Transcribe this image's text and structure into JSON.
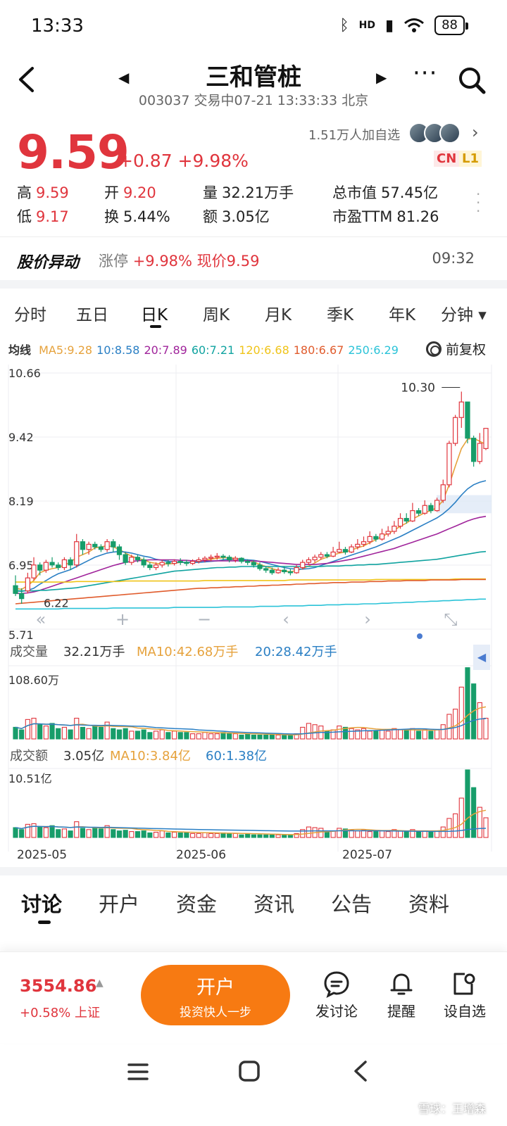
{
  "status": {
    "time": "13:33",
    "network": "HD",
    "battery": "88"
  },
  "header": {
    "name": "三和管桩",
    "subtitle": "003037 交易中07-21 13:33:33 北京"
  },
  "quote": {
    "price": "9.59",
    "change": "+0.87 +9.98%",
    "followers": "1.51万人加自选",
    "tag_cn": "CN",
    "tag_l1": "L1",
    "stats": [
      {
        "label": "高",
        "value": "9.59",
        "color": "red"
      },
      {
        "label": "开",
        "value": "9.20",
        "color": "red"
      },
      {
        "label": "量",
        "value": "32.21万手",
        "color": "plain"
      },
      {
        "label": "总市值",
        "value": "57.45亿",
        "color": "plain"
      },
      {
        "label": "低",
        "value": "9.17",
        "color": "red"
      },
      {
        "label": "换",
        "value": "5.44%",
        "color": "plain"
      },
      {
        "label": "额",
        "value": "3.05亿",
        "color": "plain"
      },
      {
        "label": "市盈TTM",
        "value": "81.26",
        "color": "plain"
      }
    ]
  },
  "alert": {
    "title": "股价异动",
    "label": "涨停",
    "text": "+9.98% 现价9.59",
    "time": "09:32"
  },
  "periods": [
    "分时",
    "五日",
    "日K",
    "周K",
    "月K",
    "季K",
    "年K",
    "分钟 ▾"
  ],
  "ma_legend": {
    "label": "均线",
    "items": [
      {
        "text": "MA5:9.28",
        "color": "#e6a23c"
      },
      {
        "text": "10:8.58",
        "color": "#2a7fc4"
      },
      {
        "text": "20:7.89",
        "color": "#a0249b"
      },
      {
        "text": "60:7.21",
        "color": "#10a3a0"
      },
      {
        "text": "120:6.68",
        "color": "#f0c419"
      },
      {
        "text": "180:6.67",
        "color": "#e05b2c"
      },
      {
        "text": "250:6.29",
        "color": "#2bc3d8"
      }
    ],
    "adjust": "前复权"
  },
  "chart_data": {
    "type": "candlestick",
    "y_labels": [
      "10.66",
      "9.42",
      "8.19",
      "6.95",
      "5.71"
    ],
    "ylim": [
      5.71,
      10.66
    ],
    "high_marker": "10.30",
    "low_marker": "6.22",
    "x_labels": [
      "2025-05",
      "2025-06",
      "2025-07"
    ],
    "candles": [
      [
        6.55,
        6.4,
        6.75,
        6.35
      ],
      [
        6.4,
        6.3,
        6.5,
        6.2
      ],
      [
        6.45,
        6.7,
        6.8,
        6.4
      ],
      [
        6.7,
        6.95,
        7.1,
        6.65
      ],
      [
        6.95,
        6.85,
        7.0,
        6.75
      ],
      [
        6.85,
        7.0,
        7.05,
        6.8
      ],
      [
        7.0,
        6.95,
        7.1,
        6.9
      ],
      [
        6.95,
        6.9,
        7.0,
        6.85
      ],
      [
        6.9,
        7.05,
        7.1,
        6.85
      ],
      [
        7.05,
        6.95,
        7.1,
        6.85
      ],
      [
        6.95,
        7.4,
        7.55,
        6.9
      ],
      [
        7.4,
        7.25,
        7.45,
        7.15
      ],
      [
        7.25,
        7.35,
        7.4,
        7.15
      ],
      [
        7.35,
        7.3,
        7.4,
        7.25
      ],
      [
        7.3,
        7.25,
        7.35,
        7.2
      ],
      [
        7.25,
        7.4,
        7.45,
        7.2
      ],
      [
        7.4,
        7.3,
        7.45,
        7.2
      ],
      [
        7.3,
        7.15,
        7.35,
        7.05
      ],
      [
        7.15,
        7.0,
        7.2,
        6.95
      ],
      [
        7.0,
        7.1,
        7.15,
        6.95
      ],
      [
        7.1,
        7.05,
        7.15,
        7.0
      ],
      [
        7.05,
        6.95,
        7.1,
        6.9
      ],
      [
        6.95,
        6.9,
        7.0,
        6.85
      ],
      [
        6.9,
        6.95,
        7.0,
        6.85
      ],
      [
        6.95,
        7.0,
        7.05,
        6.9
      ],
      [
        7.0,
        6.98,
        7.05,
        6.92
      ],
      [
        6.98,
        7.02,
        7.06,
        6.94
      ],
      [
        7.02,
        7.0,
        7.08,
        6.95
      ],
      [
        7.0,
        6.98,
        7.05,
        6.93
      ],
      [
        6.98,
        7.02,
        7.06,
        6.95
      ],
      [
        7.02,
        7.05,
        7.1,
        6.98
      ],
      [
        7.05,
        7.08,
        7.12,
        7.0
      ],
      [
        7.08,
        7.1,
        7.15,
        7.02
      ],
      [
        7.1,
        7.12,
        7.18,
        7.05
      ],
      [
        7.12,
        7.1,
        7.16,
        7.04
      ],
      [
        7.1,
        7.05,
        7.14,
        7.0
      ],
      [
        7.05,
        7.08,
        7.12,
        7.0
      ],
      [
        7.08,
        7.02,
        7.1,
        6.98
      ],
      [
        7.02,
        7.0,
        7.06,
        6.95
      ],
      [
        7.0,
        6.95,
        7.04,
        6.9
      ],
      [
        6.95,
        6.88,
        7.0,
        6.84
      ],
      [
        6.88,
        6.85,
        6.92,
        6.8
      ],
      [
        6.85,
        6.8,
        6.9,
        6.76
      ],
      [
        6.8,
        6.85,
        6.9,
        6.78
      ],
      [
        6.85,
        6.82,
        6.92,
        6.78
      ],
      [
        6.82,
        6.8,
        6.88,
        6.75
      ],
      [
        6.8,
        6.9,
        6.95,
        6.78
      ],
      [
        6.9,
        7.0,
        7.05,
        6.86
      ],
      [
        7.0,
        7.05,
        7.1,
        6.95
      ],
      [
        7.05,
        7.1,
        7.15,
        7.0
      ],
      [
        7.1,
        7.15,
        7.2,
        7.05
      ],
      [
        7.15,
        7.12,
        7.2,
        7.08
      ],
      [
        7.12,
        7.2,
        7.3,
        7.1
      ],
      [
        7.2,
        7.25,
        7.4,
        7.18
      ],
      [
        7.25,
        7.2,
        7.3,
        7.15
      ],
      [
        7.2,
        7.3,
        7.35,
        7.18
      ],
      [
        7.3,
        7.35,
        7.45,
        7.25
      ],
      [
        7.35,
        7.4,
        7.5,
        7.3
      ],
      [
        7.4,
        7.5,
        7.6,
        7.35
      ],
      [
        7.5,
        7.45,
        7.55,
        7.4
      ],
      [
        7.45,
        7.55,
        7.65,
        7.42
      ],
      [
        7.55,
        7.6,
        7.7,
        7.5
      ],
      [
        7.6,
        7.7,
        7.8,
        7.55
      ],
      [
        7.7,
        7.85,
        7.95,
        7.65
      ],
      [
        7.85,
        7.8,
        7.95,
        7.75
      ],
      [
        7.8,
        8.0,
        8.15,
        7.78
      ],
      [
        8.0,
        7.95,
        8.05,
        7.9
      ],
      [
        7.95,
        8.1,
        8.2,
        7.92
      ],
      [
        8.1,
        8.0,
        8.15,
        7.95
      ],
      [
        8.0,
        8.2,
        8.25,
        7.98
      ],
      [
        8.2,
        8.5,
        8.6,
        8.15
      ],
      [
        8.5,
        9.3,
        9.35,
        8.45
      ],
      [
        9.3,
        9.8,
        9.85,
        9.25
      ],
      [
        9.8,
        10.1,
        10.3,
        9.6
      ],
      [
        10.1,
        9.4,
        10.1,
        9.3
      ],
      [
        9.4,
        8.95,
        9.45,
        8.85
      ],
      [
        8.95,
        9.3,
        9.5,
        8.9
      ],
      [
        9.2,
        9.59,
        9.59,
        9.17
      ]
    ],
    "ma_lines": [
      {
        "name": "MA5",
        "color": "#e6a23c",
        "values": [
          6.5,
          6.48,
          6.55,
          6.65,
          6.8,
          6.85,
          6.88,
          6.9,
          6.95,
          7.0,
          7.1,
          7.15,
          7.2,
          7.28,
          7.3,
          7.32,
          7.3,
          7.25,
          7.18,
          7.12,
          7.08,
          7.05,
          7.0,
          6.98,
          6.97,
          6.97,
          6.98,
          7.0,
          7.0,
          7.0,
          7.02,
          7.04,
          7.06,
          7.08,
          7.09,
          7.09,
          7.08,
          7.06,
          7.04,
          7.01,
          6.96,
          6.92,
          6.88,
          6.85,
          6.83,
          6.82,
          6.84,
          6.88,
          6.93,
          6.99,
          7.06,
          7.1,
          7.14,
          7.18,
          7.2,
          7.24,
          7.28,
          7.32,
          7.38,
          7.44,
          7.5,
          7.56,
          7.62,
          7.7,
          7.76,
          7.84,
          7.9,
          7.96,
          8.0,
          8.06,
          8.2,
          8.5,
          8.86,
          9.2,
          9.38,
          9.4,
          9.34,
          9.28
        ]
      },
      {
        "name": "10",
        "color": "#2a7fc4",
        "values": [
          6.45,
          6.44,
          6.46,
          6.5,
          6.58,
          6.65,
          6.72,
          6.78,
          6.82,
          6.86,
          6.92,
          6.98,
          7.04,
          7.1,
          7.14,
          7.18,
          7.2,
          7.21,
          7.2,
          7.18,
          7.15,
          7.12,
          7.1,
          7.06,
          7.04,
          7.02,
          7.01,
          7.0,
          7.0,
          7.0,
          7.0,
          7.01,
          7.02,
          7.03,
          7.05,
          7.06,
          7.06,
          7.06,
          7.05,
          7.04,
          7.02,
          6.99,
          6.96,
          6.93,
          6.9,
          6.88,
          6.87,
          6.87,
          6.88,
          6.9,
          6.94,
          6.98,
          7.02,
          7.06,
          7.1,
          7.14,
          7.18,
          7.22,
          7.26,
          7.3,
          7.35,
          7.4,
          7.45,
          7.5,
          7.56,
          7.62,
          7.68,
          7.74,
          7.8,
          7.86,
          7.94,
          8.04,
          8.16,
          8.3,
          8.42,
          8.5,
          8.55,
          8.58
        ]
      },
      {
        "name": "20",
        "color": "#a0249b",
        "values": [
          6.4,
          6.4,
          6.41,
          6.43,
          6.46,
          6.5,
          6.54,
          6.58,
          6.62,
          6.66,
          6.7,
          6.74,
          6.78,
          6.82,
          6.86,
          6.9,
          6.94,
          6.97,
          7.0,
          7.02,
          7.03,
          7.04,
          7.05,
          7.05,
          7.05,
          7.05,
          7.05,
          7.04,
          7.04,
          7.03,
          7.03,
          7.03,
          7.03,
          7.03,
          7.03,
          7.03,
          7.03,
          7.03,
          7.03,
          7.03,
          7.02,
          7.01,
          7.0,
          6.99,
          6.98,
          6.97,
          6.96,
          6.96,
          6.96,
          6.96,
          6.97,
          6.98,
          7.0,
          7.02,
          7.04,
          7.06,
          7.09,
          7.12,
          7.15,
          7.18,
          7.21,
          7.24,
          7.27,
          7.31,
          7.35,
          7.39,
          7.43,
          7.47,
          7.51,
          7.55,
          7.6,
          7.65,
          7.7,
          7.75,
          7.8,
          7.84,
          7.87,
          7.89
        ]
      },
      {
        "name": "60",
        "color": "#10a3a0",
        "values": [
          6.45,
          6.45,
          6.45,
          6.45,
          6.46,
          6.46,
          6.47,
          6.48,
          6.49,
          6.5,
          6.51,
          6.53,
          6.55,
          6.57,
          6.59,
          6.61,
          6.63,
          6.65,
          6.67,
          6.69,
          6.71,
          6.73,
          6.75,
          6.77,
          6.79,
          6.81,
          6.83,
          6.84,
          6.85,
          6.86,
          6.87,
          6.88,
          6.89,
          6.9,
          6.9,
          6.91,
          6.91,
          6.92,
          6.92,
          6.92,
          6.92,
          6.92,
          6.92,
          6.92,
          6.92,
          6.92,
          6.92,
          6.92,
          6.92,
          6.92,
          6.92,
          6.93,
          6.93,
          6.93,
          6.94,
          6.94,
          6.95,
          6.95,
          6.96,
          6.96,
          6.97,
          6.98,
          6.99,
          7.0,
          7.01,
          7.02,
          7.03,
          7.04,
          7.05,
          7.06,
          7.08,
          7.1,
          7.12,
          7.14,
          7.16,
          7.18,
          7.2,
          7.21
        ]
      },
      {
        "name": "120",
        "color": "#f0c419",
        "values": [
          6.62,
          6.62,
          6.62,
          6.62,
          6.62,
          6.62,
          6.62,
          6.62,
          6.62,
          6.62,
          6.63,
          6.63,
          6.63,
          6.63,
          6.63,
          6.63,
          6.63,
          6.63,
          6.64,
          6.64,
          6.64,
          6.64,
          6.64,
          6.64,
          6.64,
          6.64,
          6.64,
          6.64,
          6.64,
          6.64,
          6.64,
          6.65,
          6.65,
          6.65,
          6.65,
          6.65,
          6.65,
          6.65,
          6.65,
          6.65,
          6.65,
          6.65,
          6.65,
          6.65,
          6.65,
          6.66,
          6.66,
          6.66,
          6.66,
          6.66,
          6.66,
          6.66,
          6.66,
          6.66,
          6.66,
          6.66,
          6.66,
          6.66,
          6.66,
          6.67,
          6.67,
          6.67,
          6.67,
          6.67,
          6.67,
          6.67,
          6.67,
          6.67,
          6.67,
          6.67,
          6.67,
          6.67,
          6.68,
          6.68,
          6.68,
          6.68,
          6.68,
          6.68
        ]
      },
      {
        "name": "180",
        "color": "#e05b2c",
        "values": [
          6.2,
          6.21,
          6.22,
          6.23,
          6.24,
          6.25,
          6.26,
          6.27,
          6.28,
          6.29,
          6.3,
          6.31,
          6.32,
          6.33,
          6.34,
          6.35,
          6.36,
          6.37,
          6.38,
          6.39,
          6.4,
          6.41,
          6.42,
          6.43,
          6.44,
          6.45,
          6.46,
          6.47,
          6.48,
          6.49,
          6.5,
          6.5,
          6.51,
          6.51,
          6.52,
          6.52,
          6.53,
          6.53,
          6.54,
          6.54,
          6.55,
          6.55,
          6.56,
          6.56,
          6.57,
          6.57,
          6.58,
          6.58,
          6.59,
          6.59,
          6.6,
          6.6,
          6.61,
          6.61,
          6.61,
          6.62,
          6.62,
          6.62,
          6.63,
          6.63,
          6.63,
          6.64,
          6.64,
          6.64,
          6.65,
          6.65,
          6.65,
          6.65,
          6.66,
          6.66,
          6.66,
          6.66,
          6.66,
          6.67,
          6.67,
          6.67,
          6.67,
          6.67
        ]
      },
      {
        "name": "250",
        "color": "#2bc3d8",
        "values": [
          6.1,
          6.1,
          6.1,
          6.1,
          6.1,
          6.1,
          6.1,
          6.1,
          6.11,
          6.11,
          6.11,
          6.11,
          6.11,
          6.11,
          6.11,
          6.11,
          6.12,
          6.12,
          6.12,
          6.12,
          6.12,
          6.12,
          6.12,
          6.12,
          6.12,
          6.12,
          6.13,
          6.13,
          6.13,
          6.13,
          6.13,
          6.13,
          6.13,
          6.13,
          6.14,
          6.14,
          6.14,
          6.14,
          6.14,
          6.14,
          6.15,
          6.15,
          6.15,
          6.15,
          6.16,
          6.16,
          6.16,
          6.16,
          6.17,
          6.17,
          6.17,
          6.18,
          6.18,
          6.18,
          6.19,
          6.19,
          6.19,
          6.2,
          6.2,
          6.2,
          6.21,
          6.21,
          6.22,
          6.22,
          6.23,
          6.23,
          6.24,
          6.24,
          6.25,
          6.25,
          6.26,
          6.26,
          6.27,
          6.27,
          6.28,
          6.28,
          6.29,
          6.29
        ]
      }
    ],
    "volume": {
      "header_label": "成交量",
      "header_value": "32.21万手",
      "ma10": "MA10:42.68万手",
      "ma20": "20:28.42万手",
      "max_label": "108.60万",
      "ylim": [
        0,
        108.6
      ],
      "values": [
        18,
        14,
        30,
        32,
        22,
        20,
        24,
        16,
        18,
        14,
        32,
        18,
        16,
        20,
        18,
        26,
        16,
        14,
        16,
        12,
        12,
        14,
        10,
        12,
        14,
        10,
        12,
        10,
        10,
        8,
        8,
        10,
        8,
        8,
        10,
        8,
        8,
        6,
        8,
        6,
        6,
        6,
        6,
        6,
        6,
        6,
        8,
        18,
        24,
        22,
        20,
        12,
        14,
        20,
        18,
        16,
        14,
        16,
        12,
        12,
        14,
        12,
        16,
        14,
        14,
        16,
        12,
        14,
        12,
        14,
        22,
        38,
        46,
        80,
        110,
        85,
        56,
        32
      ]
    },
    "turnover": {
      "header_label": "成交额",
      "header_value": "3.05亿",
      "ma10": "MA10:3.84亿",
      "ma60": "60:1.38亿",
      "max_label": "10.51亿",
      "ylim": [
        0,
        10.51
      ],
      "values": [
        1.5,
        1.2,
        2.0,
        2.1,
        1.6,
        1.5,
        1.8,
        1.2,
        1.3,
        1.0,
        2.4,
        1.4,
        1.2,
        1.5,
        1.3,
        1.8,
        1.2,
        1.0,
        1.1,
        0.9,
        0.9,
        1.0,
        0.7,
        0.8,
        1.0,
        0.7,
        0.8,
        0.7,
        0.7,
        0.6,
        0.6,
        0.7,
        0.6,
        0.6,
        0.7,
        0.6,
        0.6,
        0.4,
        0.6,
        0.4,
        0.4,
        0.4,
        0.4,
        0.4,
        0.4,
        0.4,
        0.6,
        1.2,
        1.6,
        1.5,
        1.4,
        0.9,
        1.0,
        1.4,
        1.3,
        1.1,
        1.0,
        1.1,
        0.9,
        0.9,
        1.0,
        0.9,
        1.2,
        1.0,
        1.0,
        1.2,
        0.9,
        1.0,
        0.9,
        1.0,
        1.6,
        2.9,
        3.6,
        6.0,
        10.3,
        7.6,
        4.6,
        3.0
      ]
    }
  },
  "content_tabs": [
    "讨论",
    "开户",
    "资金",
    "资讯",
    "公告",
    "资料"
  ],
  "bottombar": {
    "index_value": "3554.86",
    "index_sub": "+0.58% 上证",
    "open_title": "开户",
    "open_sub": "投资快人一步",
    "items": [
      "发讨论",
      "提醒",
      "设自选"
    ]
  },
  "watermark": "雪球：王增森"
}
